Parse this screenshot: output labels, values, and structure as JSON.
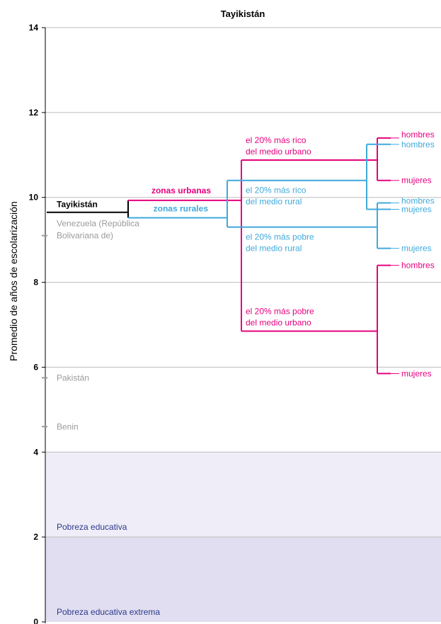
{
  "chart_data": {
    "type": "tree",
    "title": "Tayikistán",
    "ylabel": "Promedio de años de escolarización",
    "ylim": [
      0,
      14
    ],
    "yticks": [
      "0",
      "2",
      "4",
      "6",
      "8",
      "10",
      "12",
      "14"
    ],
    "grid": true,
    "bands": [
      {
        "label": "Pobreza educativa",
        "from": 2,
        "to": 4,
        "color": "#efedf7"
      },
      {
        "label": "Pobreza educativa extrema",
        "from": 0,
        "to": 2,
        "color": "#e0def0"
      }
    ],
    "reference_countries": [
      {
        "label": "Venezuela (República Bolivariana de)",
        "value": 9.1
      },
      {
        "label": "Pakistán",
        "value": 5.75
      },
      {
        "label": "Benin",
        "value": 4.6
      }
    ],
    "country": {
      "label": "Tayikistán",
      "value": 9.65
    },
    "location": [
      {
        "label": "zonas urbanas",
        "value": 9.93,
        "color": "#e6007e"
      },
      {
        "label": "zonas rurales",
        "value": 9.52,
        "color": "#3fa9dc"
      }
    ],
    "wealth": [
      {
        "label": "el 20% más rico del medio urbano",
        "value": 10.88,
        "color": "#e6007e"
      },
      {
        "label": "el 20% más pobre del medio urbano",
        "value": 6.85,
        "color": "#e6007e"
      },
      {
        "label": "el 20% más rico del medio rural",
        "value": 10.4,
        "color": "#3fa9dc"
      },
      {
        "label": "el 20% más pobre del medio rural",
        "value": 9.3,
        "color": "#3fa9dc"
      }
    ],
    "sex": [
      {
        "group": "el 20% más rico del medio urbano",
        "label": "hombres",
        "value": 11.4,
        "color": "#e6007e"
      },
      {
        "group": "el 20% más rico del medio urbano",
        "label": "mujeres",
        "value": 10.4,
        "color": "#e6007e"
      },
      {
        "group": "el 20% más rico del medio rural",
        "label": "hombres",
        "value": 11.25,
        "color": "#3fa9dc"
      },
      {
        "group": "el 20% más rico del medio rural",
        "label": "mujeres",
        "value": 9.72,
        "color": "#3fa9dc"
      },
      {
        "group": "el 20% más pobre del medio rural",
        "label": "hombres",
        "value": 9.87,
        "color": "#3fa9dc"
      },
      {
        "group": "el 20% más pobre del medio rural",
        "label": "mujeres",
        "value": 8.8,
        "color": "#3fa9dc"
      },
      {
        "group": "el 20% más pobre del medio urbano",
        "label": "hombres",
        "value": 8.4,
        "color": "#e6007e"
      },
      {
        "group": "el 20% más pobre del medio urbano",
        "label": "mujeres",
        "value": 5.85,
        "color": "#e6007e"
      }
    ],
    "colors": {
      "urban": "#e6007e",
      "rural": "#3fa9dc",
      "country": "#000000",
      "reference": "#9a9a9a",
      "band_text": "#2e3a8c",
      "grid": "#bdbdbd"
    }
  }
}
